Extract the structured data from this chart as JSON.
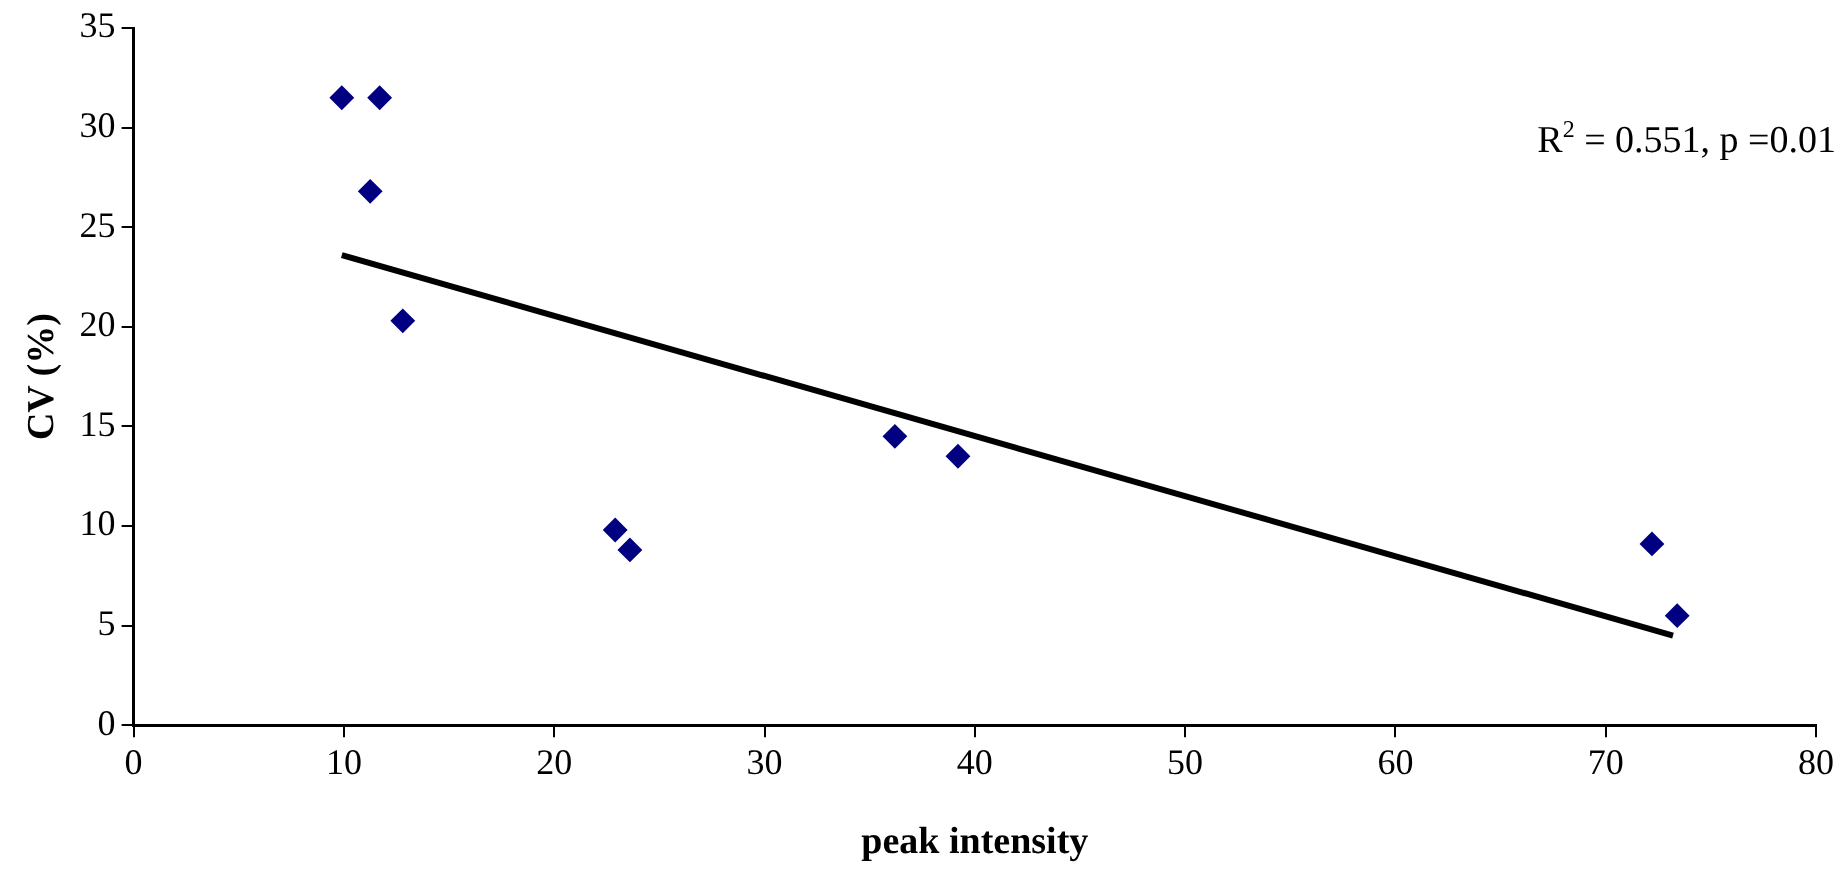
{
  "chart_data": {
    "type": "scatter",
    "xlabel": "peak intensity",
    "ylabel": "CV (%)",
    "annotations": [
      "R$^{2}$ = 0.551, p =0.01"
    ],
    "xlim": [
      0,
      80
    ],
    "xticks": [
      0,
      10,
      20,
      30,
      40,
      50,
      60,
      70,
      80
    ],
    "ylim": [
      0,
      35
    ],
    "yticks": [
      0,
      5,
      10,
      15,
      20,
      25,
      30,
      35
    ],
    "grid": false,
    "legend": false,
    "marker": "diamond",
    "series": [
      {
        "type": "scatter",
        "color": "#000080",
        "x": [
          9.9,
          11.7,
          11.25,
          12.8,
          22.9,
          23.6,
          36.2,
          39.2,
          72.2,
          73.4
        ],
        "values": [
          31.5,
          31.5,
          26.8,
          20.3,
          9.8,
          8.8,
          14.5,
          13.5,
          9.1,
          5.5
        ]
      },
      {
        "type": "line",
        "color": "#000000",
        "marker": "none",
        "x": [
          9.9,
          73.2
        ],
        "values": [
          23.6,
          4.5
        ]
      }
    ]
  }
}
